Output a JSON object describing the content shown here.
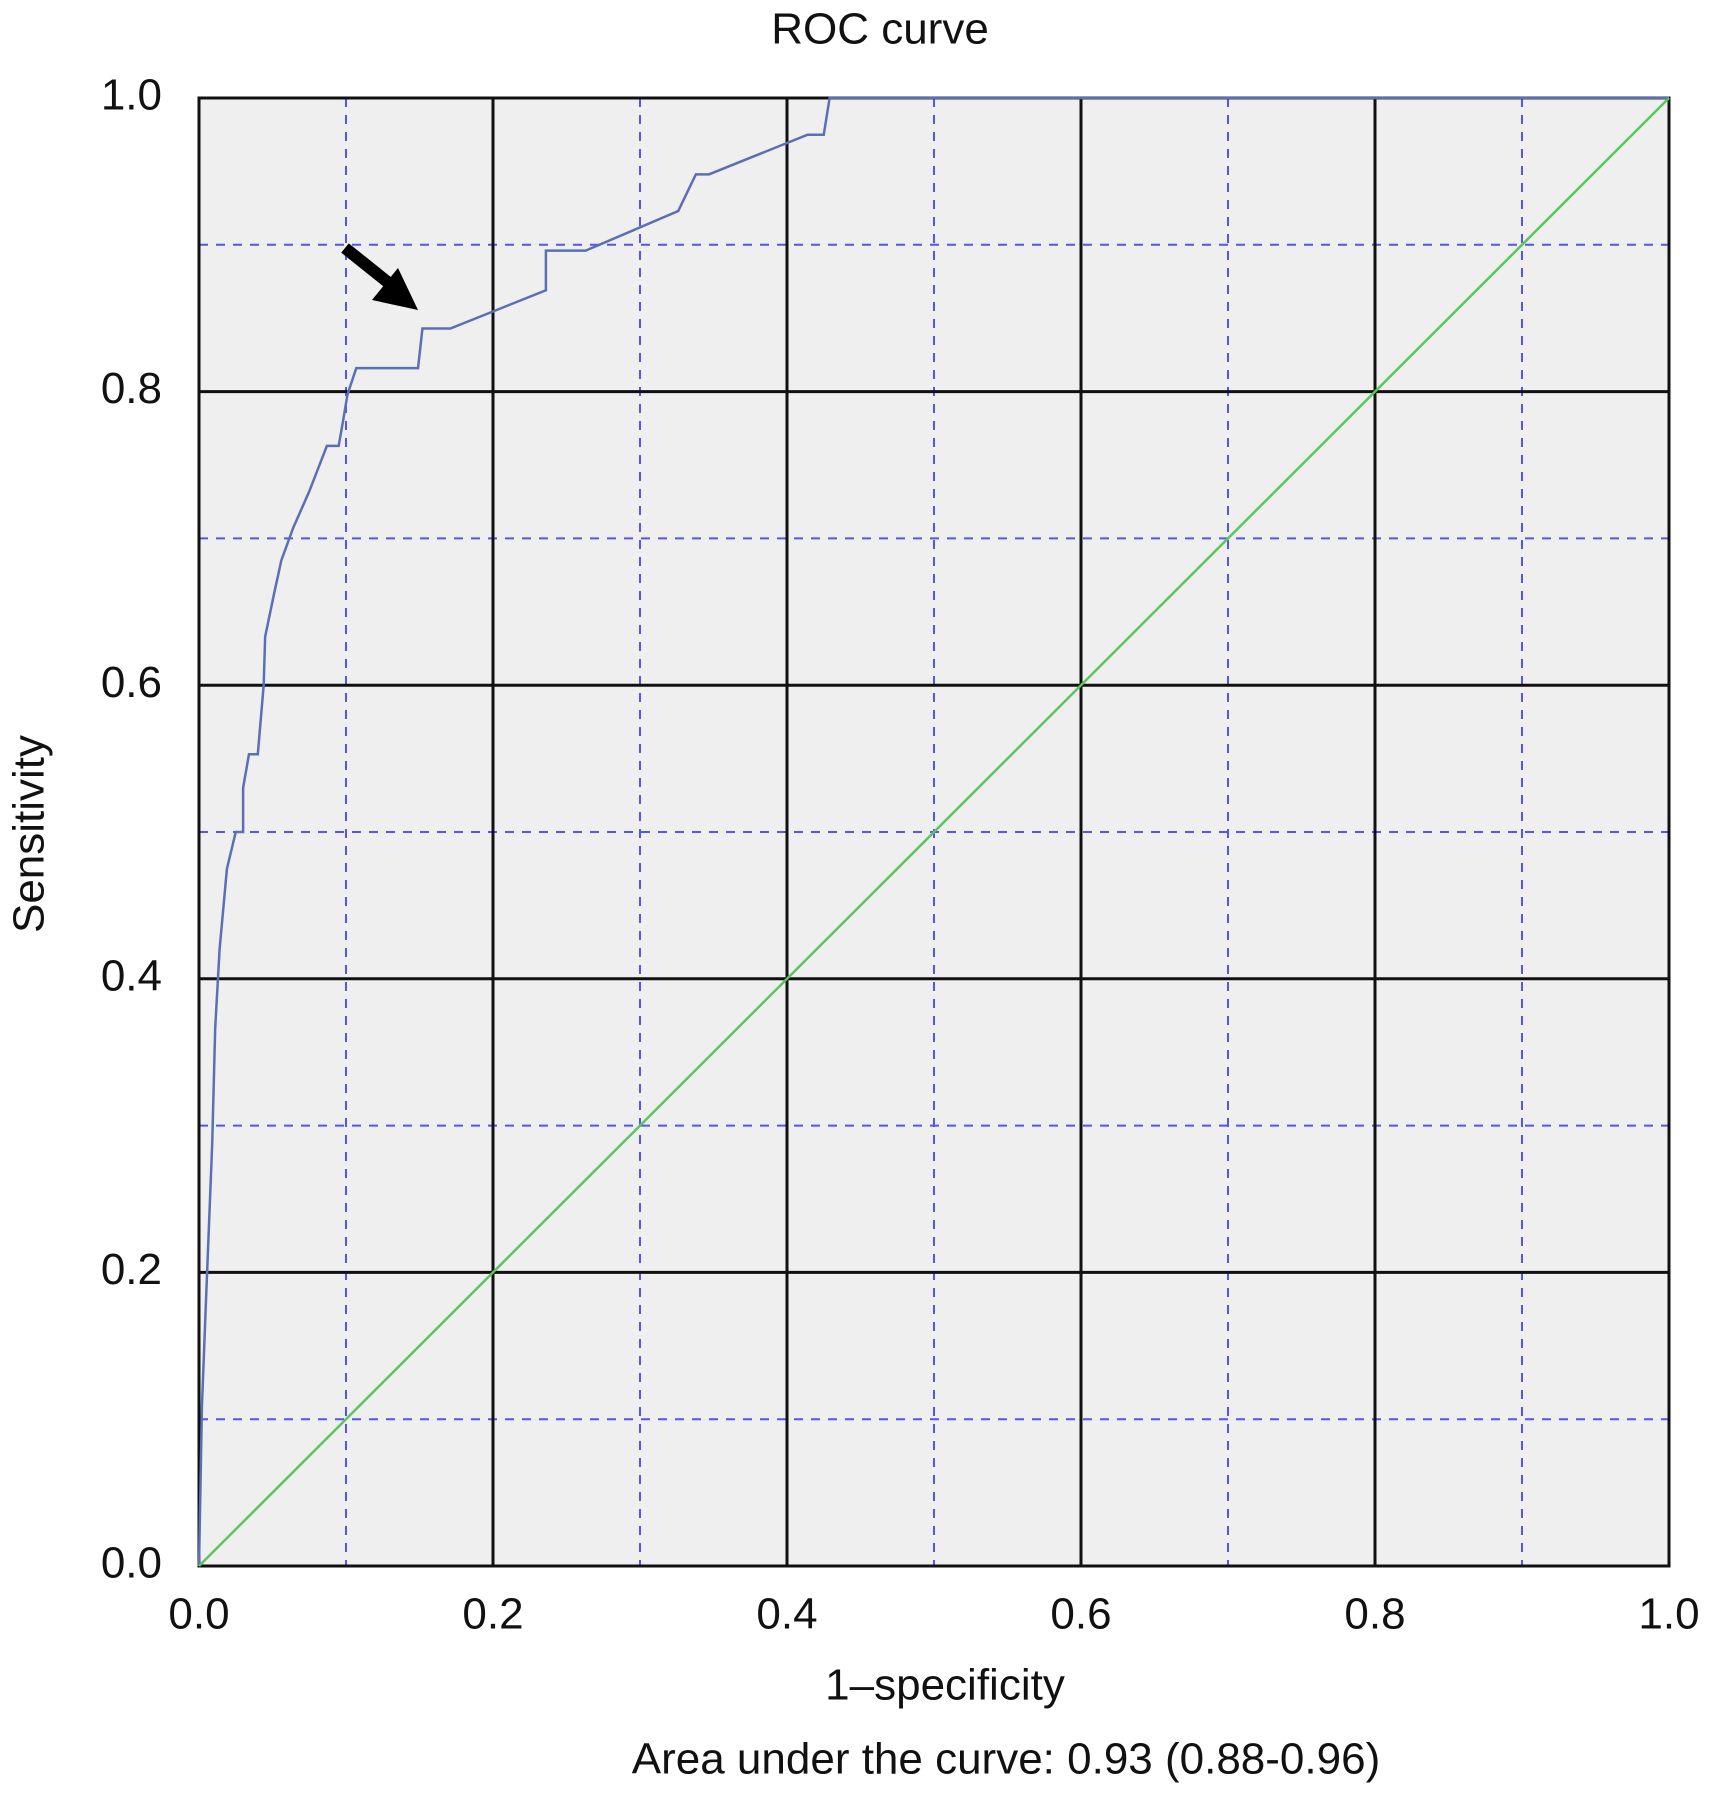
{
  "chart_data": {
    "type": "line",
    "title": "ROC curve",
    "xlabel": "1–specificity",
    "ylabel": "Sensitivity",
    "annotation": "Area under the curve: 0.93 (0.88-0.96)",
    "xlim": [
      0,
      1
    ],
    "ylim": [
      0,
      1
    ],
    "xticks": [
      {
        "value": 0,
        "label": "0.0"
      },
      0.2,
      0.4,
      0.6,
      0.8,
      {
        "value": 1,
        "label": "1.0"
      }
    ],
    "yticks": [
      {
        "value": 0,
        "label": "0.0"
      },
      0.2,
      0.4,
      0.6,
      0.8,
      {
        "value": 1,
        "label": "1.0"
      }
    ],
    "minor_xticks": [
      0.1,
      0.3,
      0.5,
      0.7,
      0.9
    ],
    "minor_yticks": [
      0.1,
      0.3,
      0.5,
      0.7,
      0.9
    ],
    "grid": true,
    "series": [
      {
        "color": "#5b6fb5",
        "x": [
          0,
          0.002,
          0.005,
          0.009,
          0.011,
          0.014,
          0.019,
          0.025,
          0.03,
          0.03,
          0.034,
          0.04,
          0.044,
          0.045,
          0.051,
          0.056,
          0.064,
          0.075,
          0.087,
          0.095,
          0.098,
          0.101,
          0.107,
          0.149,
          0.152,
          0.171,
          0.236,
          0.236,
          0.263,
          0.326,
          0.338,
          0.347,
          0.414,
          0.425,
          0.429,
          1
        ],
        "values": [
          0,
          0.109,
          0.187,
          0.288,
          0.366,
          0.42,
          0.475,
          0.5,
          0.5,
          0.53,
          0.553,
          0.553,
          0.6,
          0.633,
          0.662,
          0.685,
          0.707,
          0.732,
          0.763,
          0.763,
          0.78,
          0.798,
          0.816,
          0.816,
          0.843,
          0.843,
          0.869,
          0.896,
          0.896,
          0.923,
          0.948,
          0.948,
          0.975,
          0.975,
          1,
          1
        ]
      },
      {
        "color": "#5ec45e",
        "x": [
          0,
          1
        ],
        "values": [
          0,
          1
        ]
      }
    ]
  }
}
